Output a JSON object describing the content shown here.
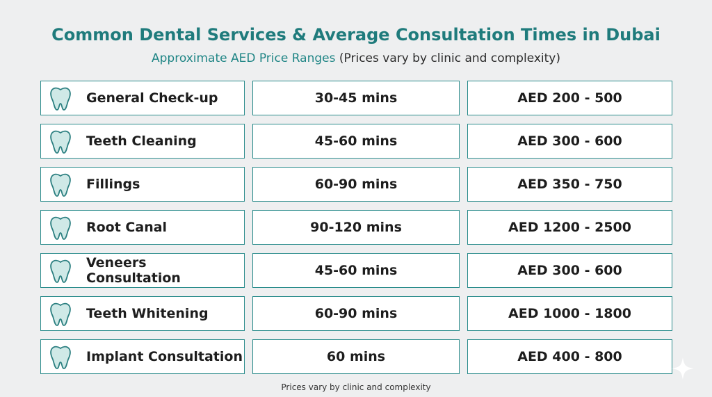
{
  "header": {
    "title": "Common Dental Services & Average Consultation Times in Dubai",
    "subtitle_highlight": "Approximate AED Price Ranges",
    "subtitle_rest": "(Prices vary by clinic and complexity)"
  },
  "table": {
    "rows": [
      [
        "General Check-up",
        "30-45 mins",
        "AED 200 - 500"
      ],
      [
        "Teeth Cleaning",
        "45-60 mins",
        "AED 300 - 600"
      ],
      [
        "Fillings",
        "60-90 mins",
        "AED 350 - 750"
      ],
      [
        "Root Canal",
        "90-120 mins",
        "AED 1200 - 2500"
      ],
      [
        "Veneers Consultation",
        "45-60 mins",
        "AED 300 - 600"
      ],
      [
        "Teeth Whitening",
        "60-90 mins",
        "AED 1000 - 1800"
      ],
      [
        "Implant Consultation",
        "60 mins",
        "AED 400 - 800"
      ]
    ]
  },
  "footer": "Prices vary by clinic and complexity"
}
